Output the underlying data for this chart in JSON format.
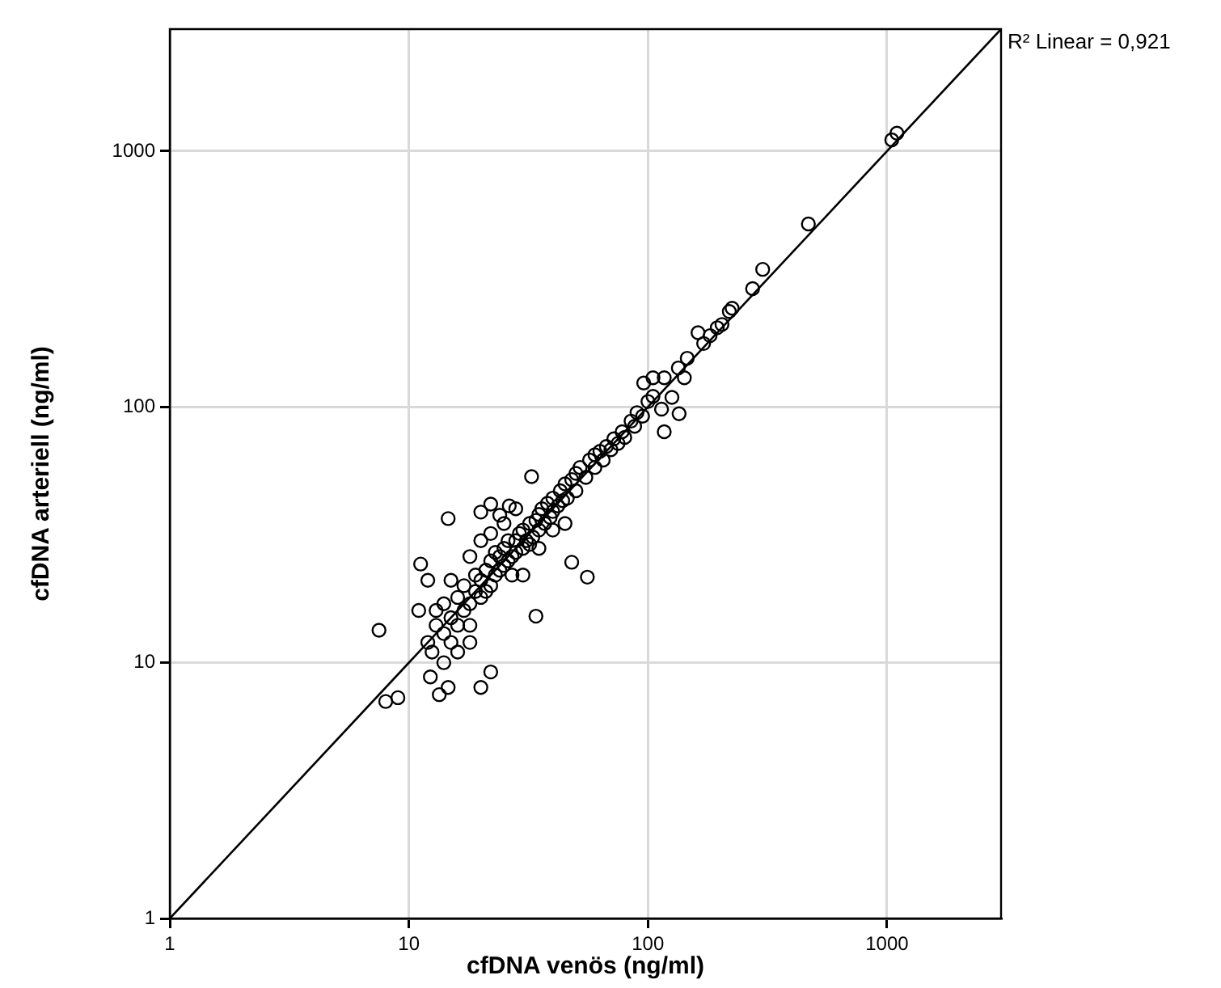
{
  "chart_data": {
    "type": "scatter",
    "xlabel": "cfDNA venös (ng/ml)",
    "ylabel": "cfDNA arteriell (ng/ml)",
    "log": "xy",
    "xlim": [
      1,
      3000
    ],
    "ylim": [
      1,
      3000
    ],
    "xticks": [
      1,
      10,
      100,
      1000
    ],
    "yticks": [
      1,
      10,
      100,
      1000
    ],
    "grid": true,
    "legend": false,
    "marker": "circle",
    "annotations": [
      "R² Linear = 0,921"
    ],
    "series": [
      {
        "color": "#000000",
        "x": [
          7.5,
          8,
          9,
          11.2,
          14.6,
          32.6,
          20,
          22,
          26.3,
          24,
          48,
          55.8,
          34,
          22,
          20,
          14.6,
          13.4,
          12.3,
          117,
          135,
          1047,
          1100,
          469,
          302,
          274,
          225,
          219,
          204,
          195,
          162,
          171,
          182,
          146,
          142,
          134,
          117,
          105,
          96,
          126,
          114,
          12,
          12.5,
          13,
          13,
          14,
          14,
          15,
          15,
          16,
          16,
          17,
          17,
          18,
          18,
          19,
          19,
          20,
          20,
          21,
          21,
          22,
          22,
          23,
          23,
          24,
          24,
          25,
          25,
          26,
          26,
          27,
          27,
          28,
          28,
          29,
          30,
          30,
          31,
          32,
          32,
          33,
          34,
          35,
          35,
          36,
          37,
          38,
          39,
          40,
          40,
          42,
          43,
          44,
          45,
          46,
          48,
          50,
          50,
          52,
          55,
          57,
          60,
          60,
          63,
          65,
          67,
          70,
          72,
          75,
          78,
          80,
          85,
          88,
          90,
          95,
          100,
          105,
          11,
          12,
          14,
          16,
          18,
          20,
          22,
          25,
          28,
          30,
          35,
          40,
          45,
          18,
          15
        ],
        "values": [
          13.4,
          7.05,
          7.3,
          24.3,
          36.6,
          53.4,
          38.8,
          41.7,
          41,
          37.7,
          24.7,
          21.6,
          15.2,
          9.2,
          8,
          8,
          7.5,
          8.8,
          80,
          94,
          1107,
          1175,
          519,
          345,
          290,
          243,
          236,
          210,
          204,
          195,
          177,
          190,
          155,
          130,
          142,
          130,
          130,
          124,
          109,
          98,
          12,
          11,
          14,
          16,
          13,
          17,
          15,
          12,
          18,
          14,
          16,
          20,
          17,
          14,
          19,
          22,
          18,
          21,
          23,
          19,
          20,
          25,
          22,
          27,
          23,
          26,
          24,
          28,
          25,
          30,
          26,
          22,
          30,
          27,
          32,
          28,
          33,
          30,
          35,
          29,
          31,
          36,
          33,
          38,
          40,
          35,
          42,
          37,
          44,
          39,
          41,
          47,
          43,
          50,
          44,
          52,
          47,
          55,
          58,
          53,
          62,
          58,
          65,
          67,
          62,
          70,
          68,
          75,
          72,
          80,
          76,
          88,
          84,
          95,
          92,
          105,
          110,
          16,
          21,
          10,
          11,
          12,
          30,
          32,
          35,
          40,
          22,
          28,
          33,
          35,
          26,
          21
        ]
      },
      {
        "type": "line",
        "color": "#000000",
        "marker": "none",
        "x": [
          1,
          3000
        ],
        "values": [
          1,
          3000
        ]
      }
    ]
  }
}
